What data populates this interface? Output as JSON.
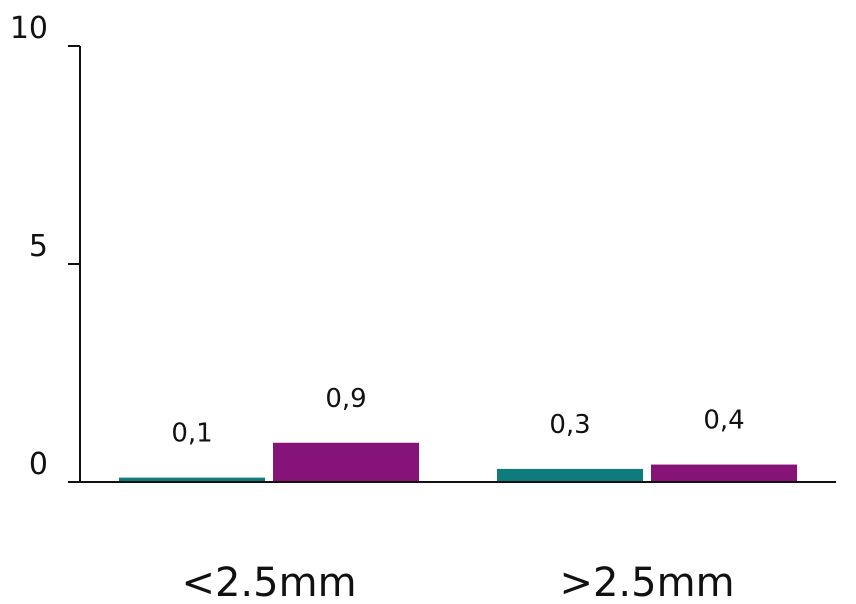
{
  "chart_data": {
    "type": "bar",
    "categories": [
      "<2.5mm",
      ">2.5mm"
    ],
    "series": [
      {
        "values": [
          0.1,
          0.3
        ],
        "color": "#0f7b7b"
      },
      {
        "values": [
          0.9,
          0.4
        ],
        "color": "#861478"
      }
    ],
    "data_labels": [
      [
        "0,1",
        "0,3"
      ],
      [
        "0,9",
        "0,4"
      ]
    ],
    "yticks": [
      0,
      5,
      10
    ],
    "ylim": [
      0,
      10
    ],
    "grid": false,
    "legend": "none"
  }
}
